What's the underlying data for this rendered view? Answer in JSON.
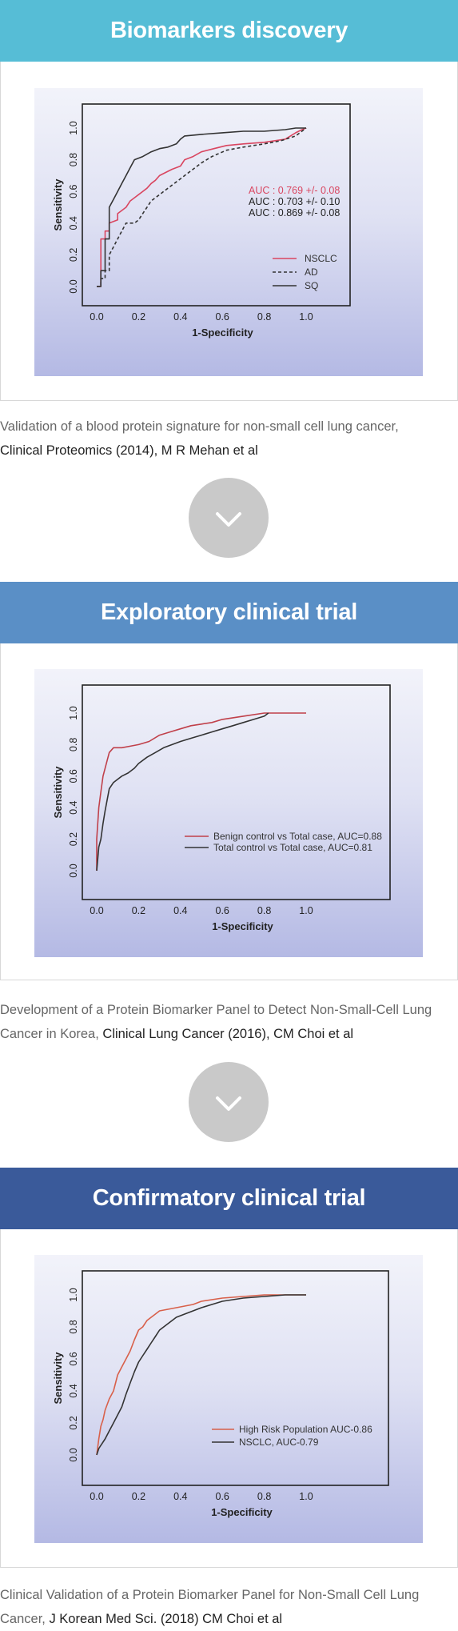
{
  "colors": {
    "banner1": "#56bdd6",
    "banner2": "#5a8fc6",
    "banner3": "#3a5a9a",
    "arrow_bg": "#c9c9c9",
    "nsclc": "#d94660",
    "dark": "#333333",
    "red_line": "#c0404a",
    "orange_line": "#d8604a"
  },
  "sections": [
    {
      "title": "Biomarkers discovery",
      "caption_text": "Validation of a blood protein signature for non-small cell lung cancer,",
      "caption_source": "Clinical Proteomics (2014), M R Mehan et al"
    },
    {
      "title": "Exploratory clinical trial",
      "caption_text": "Development of a Protein Biomarker Panel to Detect Non-Small-Cell Lung Cancer in Korea,",
      "caption_source": "Clinical Lung Cancer (2016), CM Choi et al"
    },
    {
      "title": "Confirmatory clinical trial",
      "caption_text": "Clinical Validation of a Protein Biomarker Panel for Non-Small Cell Lung Cancer,",
      "caption_source": "J Korean Med Sci. (2018) CM Choi et al"
    }
  ],
  "arrow_icon": "chevron-down-icon",
  "chart_data": [
    {
      "type": "line",
      "xlabel": "1-Specificity",
      "ylabel": "Sensitivity",
      "xlim": [
        0,
        1
      ],
      "ylim": [
        0,
        1
      ],
      "x_ticks": [
        "0.0",
        "0.2",
        "0.4",
        "0.6",
        "0.8",
        "1.0"
      ],
      "y_ticks": [
        "0.0",
        "0.2",
        "0.4",
        "0.6",
        "0.8",
        "1.0"
      ],
      "annotations": [
        "AUC : 0.769 +/- 0.08",
        "AUC : 0.703 +/- 0.10",
        "AUC : 0.869 +/- 0.08"
      ],
      "legend_position": "bottom-right",
      "series": [
        {
          "name": "NSCLC",
          "color": "#d94660",
          "dash": "solid",
          "x": [
            0,
            0.02,
            0.02,
            0.04,
            0.04,
            0.06,
            0.06,
            0.1,
            0.1,
            0.12,
            0.14,
            0.16,
            0.18,
            0.2,
            0.22,
            0.24,
            0.26,
            0.28,
            0.3,
            0.33,
            0.36,
            0.4,
            0.42,
            0.46,
            0.5,
            0.56,
            0.62,
            0.7,
            0.8,
            0.9,
            0.95,
            0.98,
            1.0
          ],
          "y": [
            0,
            0.0,
            0.3,
            0.3,
            0.35,
            0.35,
            0.4,
            0.42,
            0.46,
            0.48,
            0.5,
            0.54,
            0.56,
            0.58,
            0.6,
            0.62,
            0.65,
            0.67,
            0.7,
            0.72,
            0.74,
            0.76,
            0.8,
            0.82,
            0.85,
            0.87,
            0.89,
            0.9,
            0.91,
            0.93,
            0.97,
            0.99,
            1.0
          ]
        },
        {
          "name": "AD",
          "color": "#333333",
          "dash": "dashed",
          "x": [
            0,
            0.02,
            0.02,
            0.04,
            0.04,
            0.06,
            0.06,
            0.08,
            0.1,
            0.12,
            0.14,
            0.18,
            0.2,
            0.22,
            0.24,
            0.26,
            0.28,
            0.3,
            0.32,
            0.34,
            0.36,
            0.38,
            0.4,
            0.42,
            0.44,
            0.46,
            0.48,
            0.5,
            0.55,
            0.62,
            0.7,
            0.8,
            0.88,
            0.95,
            1.0
          ],
          "y": [
            0,
            0.0,
            0.05,
            0.05,
            0.1,
            0.1,
            0.2,
            0.25,
            0.3,
            0.35,
            0.4,
            0.4,
            0.42,
            0.46,
            0.5,
            0.54,
            0.56,
            0.58,
            0.6,
            0.62,
            0.64,
            0.66,
            0.68,
            0.7,
            0.72,
            0.74,
            0.76,
            0.78,
            0.82,
            0.86,
            0.88,
            0.9,
            0.92,
            0.95,
            1.0
          ]
        },
        {
          "name": "SQ",
          "color": "#333333",
          "dash": "solid",
          "x": [
            0,
            0.02,
            0.02,
            0.04,
            0.04,
            0.06,
            0.06,
            0.08,
            0.1,
            0.12,
            0.14,
            0.16,
            0.18,
            0.22,
            0.26,
            0.3,
            0.34,
            0.38,
            0.4,
            0.42,
            0.5,
            0.6,
            0.7,
            0.8,
            0.9,
            0.95,
            1.0
          ],
          "y": [
            0,
            0.0,
            0.1,
            0.1,
            0.3,
            0.3,
            0.5,
            0.55,
            0.6,
            0.65,
            0.7,
            0.75,
            0.8,
            0.82,
            0.85,
            0.87,
            0.88,
            0.9,
            0.93,
            0.95,
            0.96,
            0.97,
            0.98,
            0.98,
            0.99,
            1.0,
            1.0
          ]
        }
      ]
    },
    {
      "type": "line",
      "xlabel": "1-Specificity",
      "ylabel": "Sensitivity",
      "xlim": [
        0,
        1
      ],
      "ylim": [
        0,
        1
      ],
      "x_ticks": [
        "0.0",
        "0.2",
        "0.4",
        "0.6",
        "0.8",
        "1.0"
      ],
      "y_ticks": [
        "0.0",
        "0.2",
        "0.4",
        "0.6",
        "0.8",
        "1.0"
      ],
      "annotations": [],
      "legend_position": "bottom-right",
      "series": [
        {
          "name": "Benign control vs Total case, AUC=0.88",
          "color": "#c0404a",
          "dash": "solid",
          "x": [
            0,
            0.0,
            0.01,
            0.02,
            0.03,
            0.04,
            0.05,
            0.06,
            0.08,
            0.12,
            0.16,
            0.2,
            0.25,
            0.3,
            0.35,
            0.4,
            0.45,
            0.5,
            0.55,
            0.6,
            0.7,
            0.8,
            0.9,
            1.0
          ],
          "y": [
            0,
            0.2,
            0.4,
            0.5,
            0.6,
            0.65,
            0.7,
            0.75,
            0.78,
            0.78,
            0.79,
            0.8,
            0.82,
            0.86,
            0.88,
            0.9,
            0.92,
            0.93,
            0.94,
            0.96,
            0.98,
            1.0,
            1.0,
            1.0
          ]
        },
        {
          "name": "Total control vs Total case, AUC=0.81",
          "color": "#333333",
          "dash": "solid",
          "x": [
            0,
            0.01,
            0.02,
            0.03,
            0.04,
            0.05,
            0.06,
            0.08,
            0.1,
            0.12,
            0.15,
            0.18,
            0.2,
            0.24,
            0.28,
            0.32,
            0.36,
            0.4,
            0.45,
            0.5,
            0.55,
            0.6,
            0.65,
            0.7,
            0.75,
            0.8,
            0.82
          ],
          "y": [
            0,
            0.15,
            0.2,
            0.3,
            0.38,
            0.45,
            0.52,
            0.56,
            0.58,
            0.6,
            0.62,
            0.65,
            0.68,
            0.72,
            0.75,
            0.78,
            0.8,
            0.82,
            0.84,
            0.86,
            0.88,
            0.9,
            0.92,
            0.94,
            0.96,
            0.98,
            1.0
          ]
        }
      ]
    },
    {
      "type": "line",
      "xlabel": "1-Specificity",
      "ylabel": "Sensitivity",
      "xlim": [
        0,
        1
      ],
      "ylim": [
        0,
        1
      ],
      "x_ticks": [
        "0.0",
        "0.2",
        "0.4",
        "0.6",
        "0.8",
        "1.0"
      ],
      "y_ticks": [
        "0.0",
        "0.2",
        "0.4",
        "0.6",
        "0.8",
        "1.0"
      ],
      "annotations": [],
      "legend_position": "bottom-right",
      "series": [
        {
          "name": "High Risk Population AUC-0.86",
          "color": "#d8604a",
          "dash": "solid",
          "x": [
            0,
            0.01,
            0.02,
            0.03,
            0.04,
            0.06,
            0.08,
            0.1,
            0.12,
            0.14,
            0.16,
            0.18,
            0.2,
            0.22,
            0.24,
            0.26,
            0.28,
            0.3,
            0.34,
            0.38,
            0.42,
            0.46,
            0.5,
            0.6,
            0.7,
            0.8,
            0.9,
            1.0
          ],
          "y": [
            0,
            0.1,
            0.18,
            0.22,
            0.28,
            0.35,
            0.4,
            0.5,
            0.55,
            0.6,
            0.65,
            0.72,
            0.78,
            0.8,
            0.84,
            0.86,
            0.88,
            0.9,
            0.91,
            0.92,
            0.93,
            0.94,
            0.96,
            0.98,
            0.99,
            1.0,
            1.0,
            1.0
          ]
        },
        {
          "name": "NSCLC, AUC-0.79",
          "color": "#333333",
          "dash": "solid",
          "x": [
            0,
            0.01,
            0.02,
            0.04,
            0.06,
            0.08,
            0.1,
            0.12,
            0.14,
            0.16,
            0.18,
            0.2,
            0.22,
            0.24,
            0.26,
            0.28,
            0.3,
            0.34,
            0.38,
            0.42,
            0.46,
            0.5,
            0.55,
            0.6,
            0.7,
            0.8,
            0.9,
            1.0
          ],
          "y": [
            0,
            0.04,
            0.06,
            0.1,
            0.15,
            0.2,
            0.25,
            0.3,
            0.38,
            0.45,
            0.52,
            0.58,
            0.62,
            0.66,
            0.7,
            0.74,
            0.78,
            0.82,
            0.86,
            0.88,
            0.9,
            0.92,
            0.94,
            0.96,
            0.98,
            0.99,
            1.0,
            1.0
          ]
        }
      ]
    }
  ]
}
